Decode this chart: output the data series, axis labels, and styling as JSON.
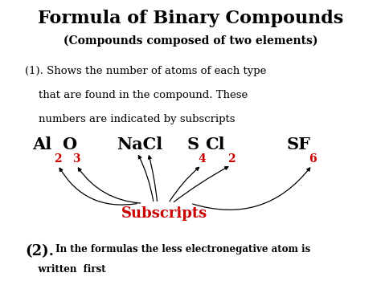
{
  "title": "Formula of Binary Compounds",
  "subtitle": "(Compounds composed of two elements)",
  "point1_line1": "(1). Shows the number of atoms of each type",
  "point1_line2": "    that are found in the compound. These",
  "point1_line3": "    numbers are indicated by subscripts",
  "point2_bold": "(2).",
  "point2_rest": " In the formulas the less electronegative atom is",
  "point2_line2": "    written  first",
  "subscripts_label": "Subscripts",
  "bg_color": "#ffffff",
  "title_color": "#000000",
  "subscripts_color": "#cc0000",
  "title_fontsize": 16,
  "subtitle_fontsize": 10,
  "body_fontsize": 9.5,
  "formula_fontsize": 15,
  "formula_sub_fontsize": 10,
  "point2_bold_fontsize": 13,
  "point2_rest_fontsize": 8.5,
  "subscripts_fontsize": 13
}
